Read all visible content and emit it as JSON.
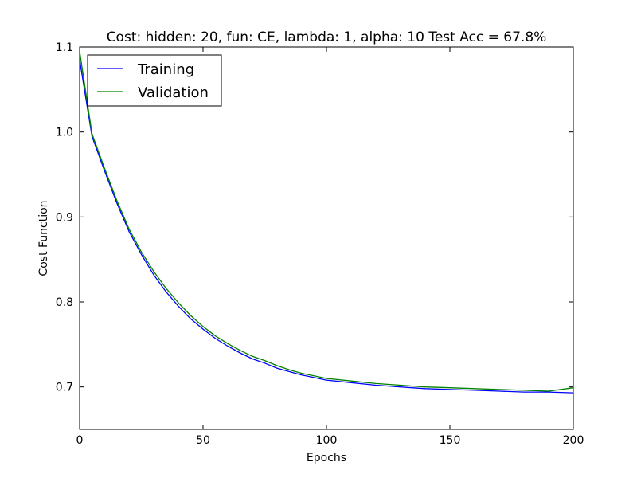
{
  "chart_data": {
    "type": "line",
    "title": "Cost: hidden: 20, fun: CE, lambda: 1, alpha: 10  Test Acc = 67.8%",
    "xlabel": "Epochs",
    "ylabel": "Cost Function",
    "xlim": [
      0,
      200
    ],
    "ylim": [
      0.65,
      1.1
    ],
    "xticks": [
      0,
      50,
      100,
      150,
      200
    ],
    "yticks": [
      0.7,
      0.8,
      0.9,
      1.0,
      1.1
    ],
    "xtick_labels": [
      "0",
      "50",
      "100",
      "150",
      "200"
    ],
    "ytick_labels": [
      "0.7",
      "0.8",
      "0.9",
      "1.0",
      "1.1"
    ],
    "grid": false,
    "legend_position": "top-left",
    "series": [
      {
        "name": "Training",
        "color": "#0000ff",
        "x": [
          0,
          5,
          10,
          15,
          20,
          25,
          30,
          35,
          40,
          45,
          50,
          55,
          60,
          65,
          70,
          75,
          80,
          85,
          90,
          95,
          100,
          110,
          120,
          130,
          140,
          150,
          160,
          170,
          180,
          190,
          200
        ],
        "y": [
          1.085,
          0.995,
          0.955,
          0.917,
          0.883,
          0.856,
          0.832,
          0.812,
          0.795,
          0.78,
          0.768,
          0.757,
          0.748,
          0.74,
          0.733,
          0.728,
          0.722,
          0.718,
          0.714,
          0.711,
          0.708,
          0.705,
          0.702,
          0.7,
          0.698,
          0.697,
          0.696,
          0.695,
          0.694,
          0.694,
          0.693
        ]
      },
      {
        "name": "Validation",
        "color": "#008000",
        "x": [
          0,
          5,
          10,
          15,
          20,
          25,
          30,
          35,
          40,
          45,
          50,
          55,
          60,
          65,
          70,
          75,
          80,
          85,
          90,
          95,
          100,
          110,
          120,
          130,
          140,
          150,
          160,
          170,
          180,
          190,
          200
        ],
        "y": [
          1.095,
          0.998,
          0.958,
          0.92,
          0.886,
          0.859,
          0.836,
          0.816,
          0.799,
          0.784,
          0.771,
          0.76,
          0.751,
          0.743,
          0.736,
          0.731,
          0.725,
          0.72,
          0.716,
          0.713,
          0.71,
          0.707,
          0.704,
          0.702,
          0.7,
          0.699,
          0.698,
          0.697,
          0.696,
          0.695,
          0.699
        ]
      }
    ]
  }
}
